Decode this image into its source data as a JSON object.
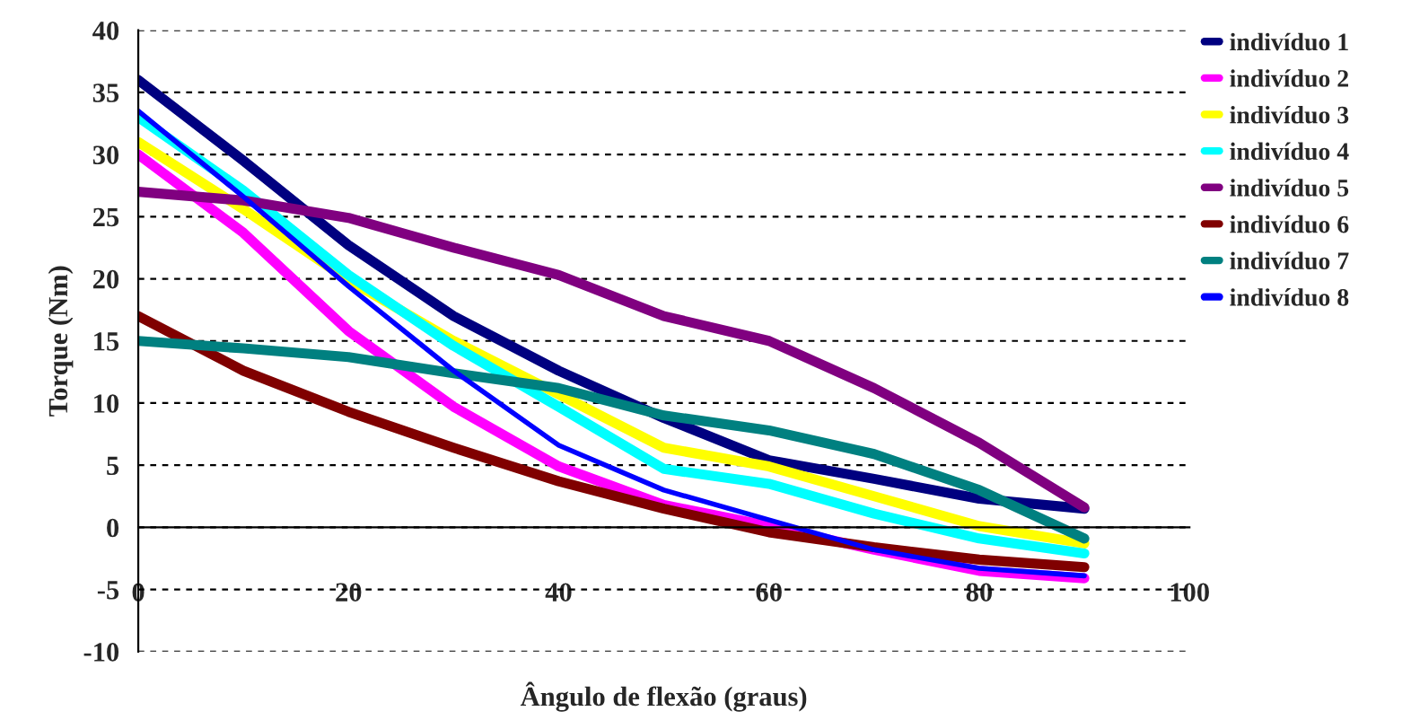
{
  "chart_data": {
    "type": "line",
    "xlabel": "Ângulo de flexão (graus)",
    "ylabel": "Torque (Nm)",
    "x": [
      0,
      10,
      20,
      30,
      40,
      50,
      60,
      70,
      80,
      90
    ],
    "series": [
      {
        "name": "indivíduo 1",
        "color": "#000080",
        "values": [
          36,
          29.5,
          22.7,
          17,
          12.6,
          8.8,
          5.4,
          3.9,
          2.3,
          1.5
        ]
      },
      {
        "name": "indivíduo 2",
        "color": "#ff00ff",
        "values": [
          30,
          23.7,
          15.8,
          9.7,
          4.9,
          1.8,
          0.1,
          -1.8,
          -3.5,
          -4.1
        ]
      },
      {
        "name": "indivíduo 3",
        "color": "#ffff00",
        "values": [
          31,
          25.6,
          19.9,
          15,
          10.7,
          6.4,
          4.9,
          2.5,
          0.1,
          -1.3
        ]
      },
      {
        "name": "indivíduo 4",
        "color": "#00ffff",
        "values": [
          33,
          27.1,
          20.3,
          14.6,
          9.7,
          4.7,
          3.5,
          1.1,
          -0.9,
          -2.1
        ]
      },
      {
        "name": "indivíduo 5",
        "color": "#800080",
        "values": [
          27,
          26.3,
          24.9,
          22.5,
          20.3,
          17,
          15,
          11.2,
          6.8,
          1.6
        ]
      },
      {
        "name": "indivíduo 6",
        "color": "#800000",
        "values": [
          17,
          12.6,
          9.3,
          6.4,
          3.7,
          1.5,
          -0.4,
          -1.6,
          -2.6,
          -3.2
        ]
      },
      {
        "name": "indivíduo 7",
        "color": "#008080",
        "values": [
          15,
          14.4,
          13.7,
          12.4,
          11.2,
          9,
          7.8,
          5.9,
          3,
          -0.9
        ]
      },
      {
        "name": "indivíduo 8",
        "color": "#0000ff",
        "values": [
          33.5,
          26.6,
          19.4,
          12.6,
          6.6,
          3,
          0.6,
          -1.8,
          -3.3,
          -3.9
        ]
      }
    ],
    "xlim": [
      0,
      100
    ],
    "xticks": [
      0,
      20,
      40,
      60,
      80,
      100
    ],
    "ylim": [
      -10,
      40
    ],
    "yticks": [
      -10,
      -5,
      0,
      5,
      10,
      15,
      20,
      25,
      30,
      35,
      40
    ],
    "grid": "y",
    "legend": "right"
  }
}
